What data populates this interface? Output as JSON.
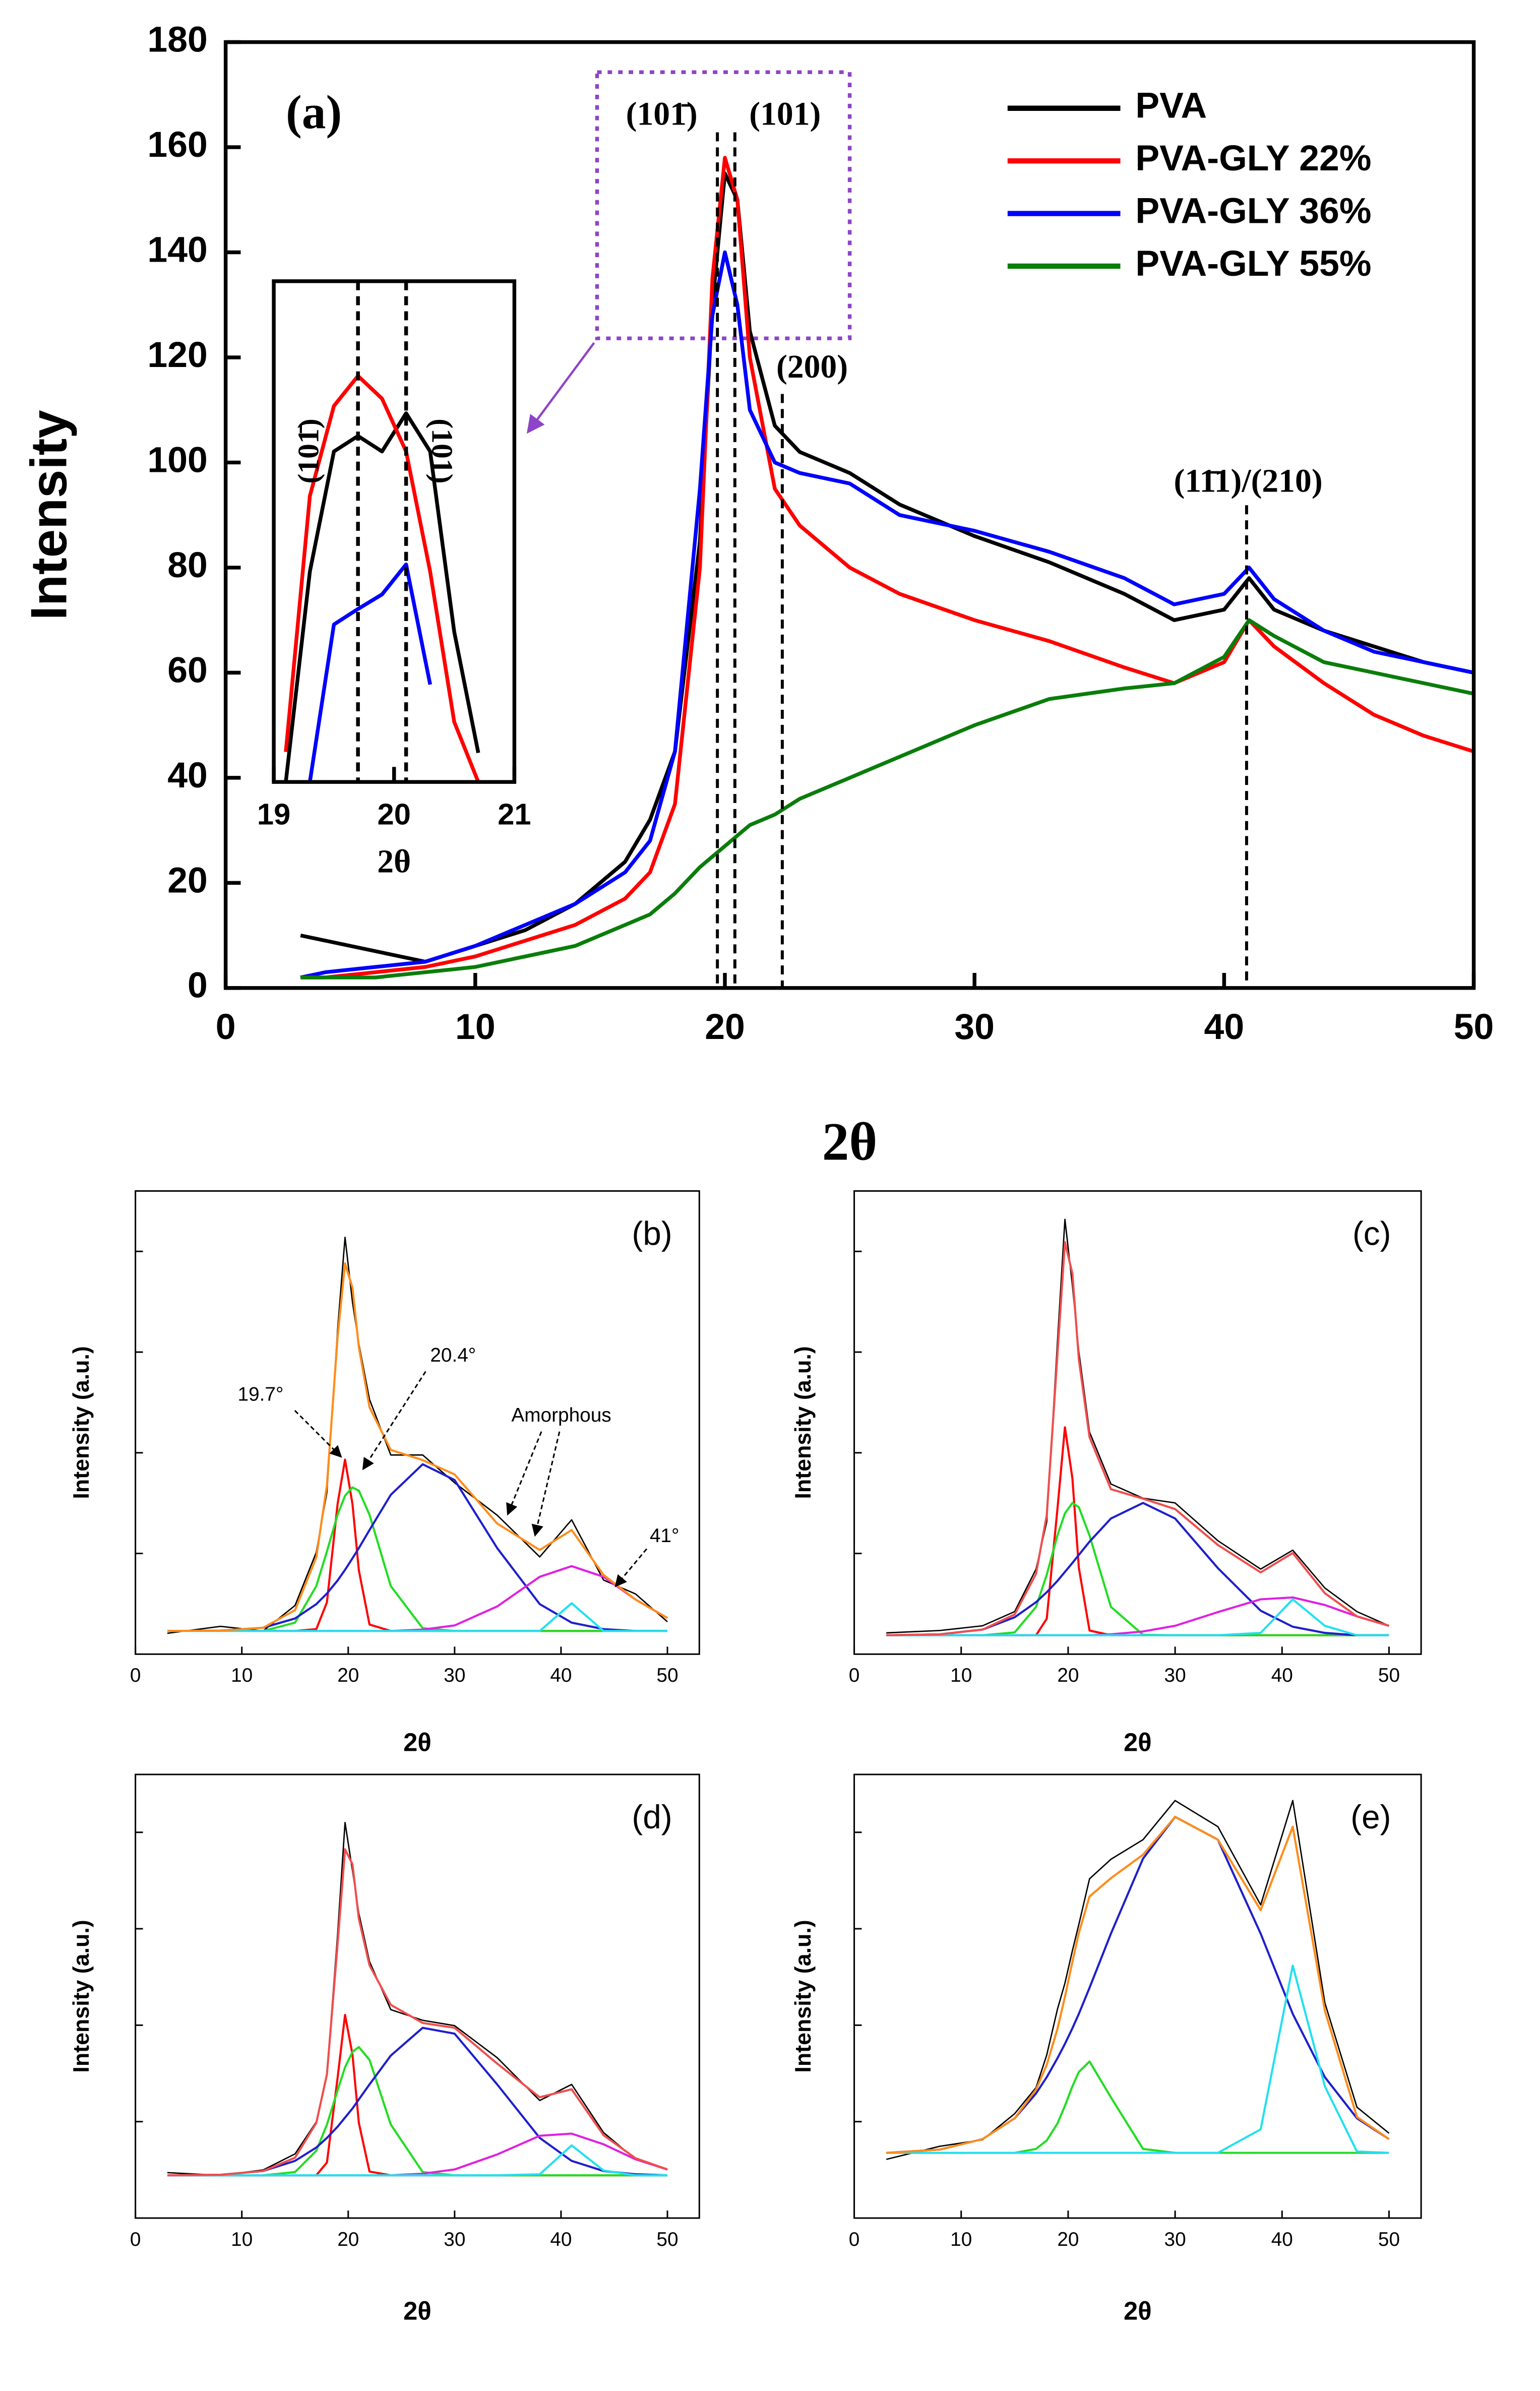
{
  "chart_data": [
    {
      "type": "line",
      "panel_label": "(a)",
      "xlabel": "2θ",
      "ylabel": "Intensity",
      "xlim": [
        0,
        50
      ],
      "ylim": [
        0,
        180
      ],
      "xticks": [
        0,
        10,
        20,
        30,
        40,
        50
      ],
      "yticks": [
        0,
        20,
        40,
        60,
        80,
        100,
        120,
        140,
        160,
        180
      ],
      "legend": "upper right",
      "x": [
        3,
        4,
        6,
        8,
        10,
        12,
        14,
        16,
        17,
        18,
        19,
        19.5,
        20,
        20.5,
        21,
        22,
        23,
        25,
        27,
        30,
        33,
        36,
        38,
        40,
        41,
        42,
        44,
        46,
        48,
        50
      ],
      "series": [
        {
          "name": "PVA",
          "color": "#000000",
          "values": [
            10,
            9,
            7,
            5,
            8,
            11,
            16,
            24,
            32,
            45,
            85,
            130,
            155,
            150,
            125,
            107,
            102,
            98,
            92,
            86,
            81,
            75,
            70,
            72,
            78,
            72,
            68,
            65,
            62,
            60
          ]
        },
        {
          "name": "PVA-GLY 22%",
          "color": "#ff0000",
          "values": [
            2,
            2,
            3,
            4,
            6,
            9,
            12,
            17,
            22,
            35,
            80,
            135,
            158,
            150,
            120,
            95,
            88,
            80,
            75,
            70,
            66,
            61,
            58,
            62,
            70,
            65,
            58,
            52,
            48,
            45
          ]
        },
        {
          "name": "PVA-GLY 36%",
          "color": "#0000ff",
          "values": [
            2,
            3,
            4,
            5,
            8,
            12,
            16,
            22,
            28,
            45,
            95,
            128,
            140,
            130,
            110,
            100,
            98,
            96,
            90,
            87,
            83,
            78,
            73,
            75,
            80,
            74,
            68,
            64,
            62,
            60
          ]
        },
        {
          "name": "PVA-GLY 55%",
          "color": "#0a7d0a",
          "values": [
            2,
            2,
            2,
            3,
            4,
            6,
            8,
            12,
            14,
            18,
            23,
            25,
            27,
            29,
            31,
            33,
            36,
            40,
            44,
            50,
            55,
            57,
            58,
            63,
            70,
            67,
            62,
            60,
            58,
            56
          ]
        }
      ],
      "peaks": [
        {
          "label": "(101̄)",
          "x": 19.7
        },
        {
          "label": "(101)",
          "x": 20.4
        },
        {
          "label": "(200)",
          "x": 22.3
        },
        {
          "label": "(11̄1)/(210)",
          "x": 40.9
        }
      ]
    },
    {
      "type": "line",
      "xlabel": "2θ",
      "xlim": [
        19,
        21
      ],
      "ylim": [
        110,
        165
      ],
      "xticks": [
        19,
        20,
        21
      ],
      "x": [
        19.1,
        19.3,
        19.5,
        19.7,
        19.9,
        20.1,
        20.3,
        20.5,
        20.7
      ],
      "series": [
        {
          "color": "#000000",
          "values": [
            110,
            133.1,
            146.3,
            148,
            146.3,
            150.5,
            146.3,
            126.5,
            113.2
          ]
        },
        {
          "color": "#ff0000",
          "values": [
            113.3,
            141.4,
            151.3,
            154.6,
            152.1,
            146.3,
            133.1,
            116.6,
            110
          ]
        },
        {
          "color": "#0000ff",
          "values": [
            null,
            110,
            127.3,
            129,
            130.6,
            133.9,
            120.7,
            null,
            null
          ]
        }
      ],
      "peaks": [
        {
          "label": "(101̄)",
          "x": 19.7
        },
        {
          "label": "(101)",
          "x": 20.1
        }
      ]
    },
    {
      "type": "line",
      "panel_label": "(b)",
      "xlabel": "2θ",
      "ylabel": "Intensity (a.u.)",
      "xlim": [
        0,
        53
      ],
      "ylim": [
        0,
        100
      ],
      "xticks": [
        0,
        10,
        20,
        30,
        40,
        50
      ],
      "x": [
        3,
        8,
        12,
        15,
        17,
        18,
        19,
        19.7,
        20.4,
        21,
        22,
        24,
        27,
        30,
        34,
        38,
        41,
        44,
        47,
        50
      ],
      "series": [
        {
          "color": "#000000",
          "values": [
            4.5,
            6,
            5,
            10.5,
            22,
            35,
            70,
            90,
            76,
            67,
            55,
            43,
            43,
            37,
            30,
            21,
            29,
            16,
            13,
            7
          ]
        },
        {
          "color": "#ff0000",
          "values": [
            5,
            5,
            5,
            5,
            5.4,
            11.2,
            32.4,
            42,
            32.4,
            18.1,
            6.4,
            5,
            5,
            5,
            5,
            5,
            5,
            5,
            5,
            5
          ]
        },
        {
          "color": "#22dd22",
          "values": [
            5,
            5,
            5,
            6.8,
            14.7,
            22.2,
            30.1,
            34.2,
            36,
            35.3,
            30.1,
            14.7,
            5.6,
            5,
            5,
            5,
            5,
            5,
            5,
            5
          ]
        },
        {
          "color": "#1f1fcc",
          "values": [
            5,
            5.1,
            5.7,
            7.7,
            10.8,
            13.1,
            15.9,
            18.2,
            20.7,
            22.9,
            26.8,
            34.4,
            41,
            37.6,
            22.9,
            10.8,
            6.8,
            5.4,
            5,
            5
          ]
        },
        {
          "color": "#e020e0",
          "values": [
            5,
            5,
            5,
            5,
            5,
            5,
            5,
            5,
            5,
            5,
            5,
            5,
            5.3,
            6.2,
            10.3,
            16.7,
            19,
            16.7,
            11.8,
            7.8
          ]
        },
        {
          "color": "#22e0f0",
          "values": [
            5,
            5,
            5,
            5,
            5,
            5,
            5,
            5,
            5,
            5,
            5,
            5,
            5,
            5,
            5,
            5,
            11,
            5,
            5,
            5
          ]
        },
        {
          "color": "#ff8c1a",
          "values": [
            5,
            5.1,
            5.7,
            9.5,
            20.9,
            36.5,
            68.4,
            84.4,
            79.1,
            66.3,
            53.3,
            44.1,
            41.9,
            38.8,
            28.2,
            22.5,
            26.8,
            17.1,
            11.8,
            7.8
          ]
        }
      ],
      "annotations": [
        "19.7°",
        "20.4°",
        "Amorphous",
        "41°"
      ]
    },
    {
      "type": "line",
      "panel_label": "(c)",
      "xlabel": "2θ",
      "ylabel": "Intensity (a.u.)",
      "xlim": [
        0,
        53
      ],
      "ylim": [
        0,
        98
      ],
      "xticks": [
        0,
        10,
        20,
        30,
        40,
        50
      ],
      "x": [
        3,
        8,
        12,
        15,
        17,
        18,
        19,
        19.7,
        20.4,
        21,
        22,
        24,
        27,
        30,
        34,
        38,
        41,
        44,
        47,
        50
      ],
      "series": [
        {
          "color": "#000000",
          "values": [
            4.5,
            5,
            6,
            9,
            18,
            28,
            66,
            92,
            78,
            64,
            47,
            36,
            33,
            32,
            24,
            18,
            22,
            14,
            9,
            6
          ]
        },
        {
          "color": "#ff0000",
          "values": [
            4,
            4,
            4,
            4,
            4,
            7.5,
            30.7,
            48,
            37.2,
            18.3,
            5,
            4,
            4,
            4,
            4,
            4,
            4,
            4,
            4,
            4
          ]
        },
        {
          "color": "#22dd22",
          "values": [
            4,
            4,
            4,
            4.6,
            10,
            16.8,
            25.1,
            29.8,
            32,
            31.1,
            25.1,
            10,
            4.1,
            4,
            4,
            4,
            4,
            4,
            4,
            4
          ]
        },
        {
          "color": "#1f1fcc",
          "values": [
            4,
            4.2,
            5.2,
            7.8,
            11,
            13.1,
            15.5,
            17.4,
            19.3,
            21,
            23.8,
            28.7,
            32,
            28.7,
            18.2,
            9.2,
            5.8,
            4.5,
            4,
            4
          ]
        },
        {
          "color": "#e020e0",
          "values": [
            4,
            4,
            4,
            4,
            4,
            4,
            4,
            4,
            4,
            4,
            4,
            4.2,
            4.8,
            6,
            8.9,
            11.6,
            12,
            10.4,
            8,
            6
          ]
        },
        {
          "color": "#22e0f0",
          "values": [
            4,
            4,
            4,
            4,
            4,
            4,
            4,
            4,
            4,
            4,
            4,
            4,
            4,
            4,
            4,
            4.5,
            11.6,
            6,
            4,
            4
          ]
        },
        {
          "color": "#f04e4e",
          "values": [
            4,
            4.2,
            5.2,
            8.4,
            17,
            29.4,
            63.3,
            87.2,
            80.5,
            62.4,
            45.9,
            34.9,
            32.9,
            30.7,
            23.1,
            17.3,
            21.4,
            12.9,
            8,
            6
          ]
        }
      ]
    },
    {
      "type": "line",
      "panel_label": "(d)",
      "xlabel": "2θ",
      "ylabel": "Intensity (a.u.)",
      "xlim": [
        0,
        53
      ],
      "ylim": [
        0,
        83
      ],
      "xticks": [
        0,
        10,
        20,
        30,
        40,
        50
      ],
      "x": [
        3,
        8,
        12,
        15,
        17,
        18,
        19,
        19.7,
        20.4,
        21,
        22,
        24,
        27,
        30,
        34,
        38,
        41,
        44,
        47,
        50
      ],
      "series": [
        {
          "color": "#000000",
          "values": [
            8.5,
            8,
            9,
            12,
            18,
            27,
            53,
            74,
            65,
            57,
            48,
            39,
            37,
            36,
            30,
            22,
            25,
            16,
            11,
            9
          ]
        },
        {
          "color": "#ff0000",
          "values": [
            8,
            8,
            8,
            8,
            8,
            10.4,
            26.2,
            38,
            30.6,
            17.8,
            8.7,
            8,
            8,
            8,
            8,
            8,
            8,
            8,
            8,
            8
          ]
        },
        {
          "color": "#22dd22",
          "values": [
            8,
            8,
            8,
            8.6,
            12.6,
            17.5,
            23.9,
            28.2,
            31.1,
            32,
            29.6,
            17.5,
            8.6,
            8,
            8,
            8,
            8,
            8,
            8,
            8
          ]
        },
        {
          "color": "#1f1fcc",
          "values": [
            8,
            8.1,
            8.8,
            10.7,
            13.2,
            15,
            17.1,
            18.8,
            20.5,
            22.2,
            25,
            30.4,
            35.6,
            34.5,
            25,
            15,
            10.7,
            8.8,
            8.2,
            8
          ]
        },
        {
          "color": "#e020e0",
          "values": [
            8,
            8,
            8,
            8,
            8,
            8,
            8,
            8,
            8,
            8,
            8,
            8,
            8.3,
            9.1,
            11.9,
            15.4,
            15.8,
            13.8,
            11,
            9.1
          ]
        },
        {
          "color": "#22e0f0",
          "values": [
            8,
            8,
            8,
            8,
            8,
            8,
            8,
            8,
            8,
            8,
            8,
            8,
            8,
            8,
            8,
            8.2,
            13.6,
            8.9,
            8,
            8
          ]
        },
        {
          "color": "#f04e4e",
          "values": [
            8,
            8.1,
            8.8,
            11.3,
            17.8,
            26.9,
            51.2,
            69,
            66.2,
            56,
            47.3,
            39.9,
            36.5,
            35.6,
            28.9,
            22.6,
            24.1,
            15.5,
            11.2,
            9.1
          ]
        }
      ]
    },
    {
      "type": "line",
      "panel_label": "(e)",
      "xlabel": "2θ",
      "ylabel": "Intensity (a.u.)",
      "xlim": [
        0,
        53
      ],
      "ylim": [
        0,
        68
      ],
      "xticks": [
        0,
        10,
        20,
        30,
        40,
        50
      ],
      "x": [
        3,
        8,
        12,
        15,
        17,
        18,
        19,
        19.7,
        20.4,
        21,
        22,
        24,
        27,
        30,
        34,
        38,
        41,
        44,
        47,
        50
      ],
      "series": [
        {
          "color": "#000000",
          "values": [
            9,
            11,
            12,
            16,
            20,
            25,
            32,
            36,
            41,
            45,
            52,
            55,
            58,
            64,
            60,
            48,
            64,
            33,
            17,
            13
          ]
        },
        {
          "color": "#22dd22",
          "values": [
            10,
            10,
            10,
            10,
            10.6,
            11.9,
            14.5,
            17.2,
            20.2,
            22.4,
            24,
            18.5,
            10.6,
            10,
            10,
            10,
            10,
            10,
            10,
            10
          ]
        },
        {
          "color": "#1f1fcc",
          "values": [
            10,
            10.5,
            12.1,
            15.3,
            19.1,
            21.6,
            24.5,
            26.7,
            29.1,
            31.3,
            35.3,
            43.6,
            55.1,
            61.5,
            58,
            43.6,
            31.3,
            21.6,
            15.3,
            12.1
          ]
        },
        {
          "color": "#22e0f0",
          "values": [
            10,
            10,
            10,
            10,
            10,
            10,
            10,
            10,
            10,
            10,
            10,
            10,
            10,
            10,
            10,
            13.6,
            38.7,
            20.2,
            10.2,
            10
          ]
        },
        {
          "color": "#ff8c1a",
          "values": [
            10,
            10.5,
            12.1,
            15.3,
            19.7,
            23.5,
            29,
            33.9,
            39.3,
            43.7,
            49.3,
            52.1,
            55.7,
            61.5,
            58,
            47.2,
            60,
            31.8,
            15.5,
            12.1
          ]
        }
      ]
    }
  ]
}
